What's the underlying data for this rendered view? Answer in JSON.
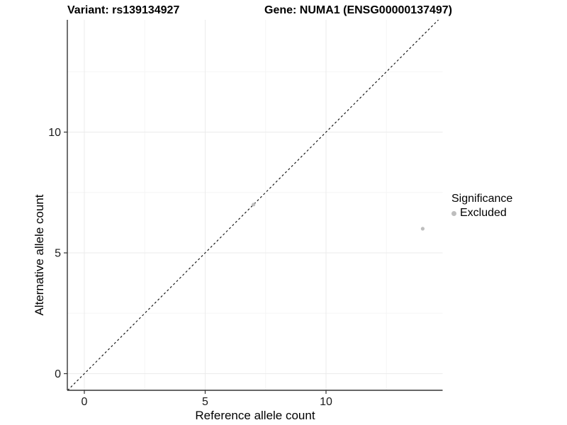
{
  "header": {
    "variant_title": "Variant: rs139134927",
    "gene_title": "Gene: NUMA1 (ENSG00000137497)"
  },
  "chart_data": {
    "type": "scatter",
    "title": "Variant: rs139134927 / Gene: NUMA1 (ENSG00000137497)",
    "xlabel": "Reference allele count",
    "ylabel": "Alternative allele count",
    "xlim": [
      -0.72,
      14.85
    ],
    "ylim": [
      -0.72,
      14.65
    ],
    "x_major_ticks": [
      0,
      5,
      10
    ],
    "y_major_ticks": [
      0,
      5,
      10
    ],
    "x_minor_ticks": [
      2.5,
      7.5,
      12.5
    ],
    "y_minor_ticks": [
      2.5,
      7.5,
      12.5
    ],
    "grid": true,
    "reference_line": {
      "type": "identity",
      "slope": 1,
      "intercept": 0,
      "style": "dashed",
      "color": "#1a1a1a"
    },
    "series": [
      {
        "name": "Excluded",
        "color": "#bebebe",
        "points": [
          {
            "x": 7,
            "y": 7
          },
          {
            "x": 14,
            "y": 6
          }
        ]
      }
    ],
    "legend": {
      "title": "Significance",
      "position": "right",
      "items": [
        {
          "label": "Excluded",
          "color": "#bebebe"
        }
      ]
    }
  },
  "colors": {
    "grid_major": "#ebebeb",
    "grid_minor": "#f5f5f5",
    "axis_line": "#333333",
    "tick_mark": "#333333",
    "tick_label": "#1a1a1a",
    "point": "#bebebe"
  }
}
